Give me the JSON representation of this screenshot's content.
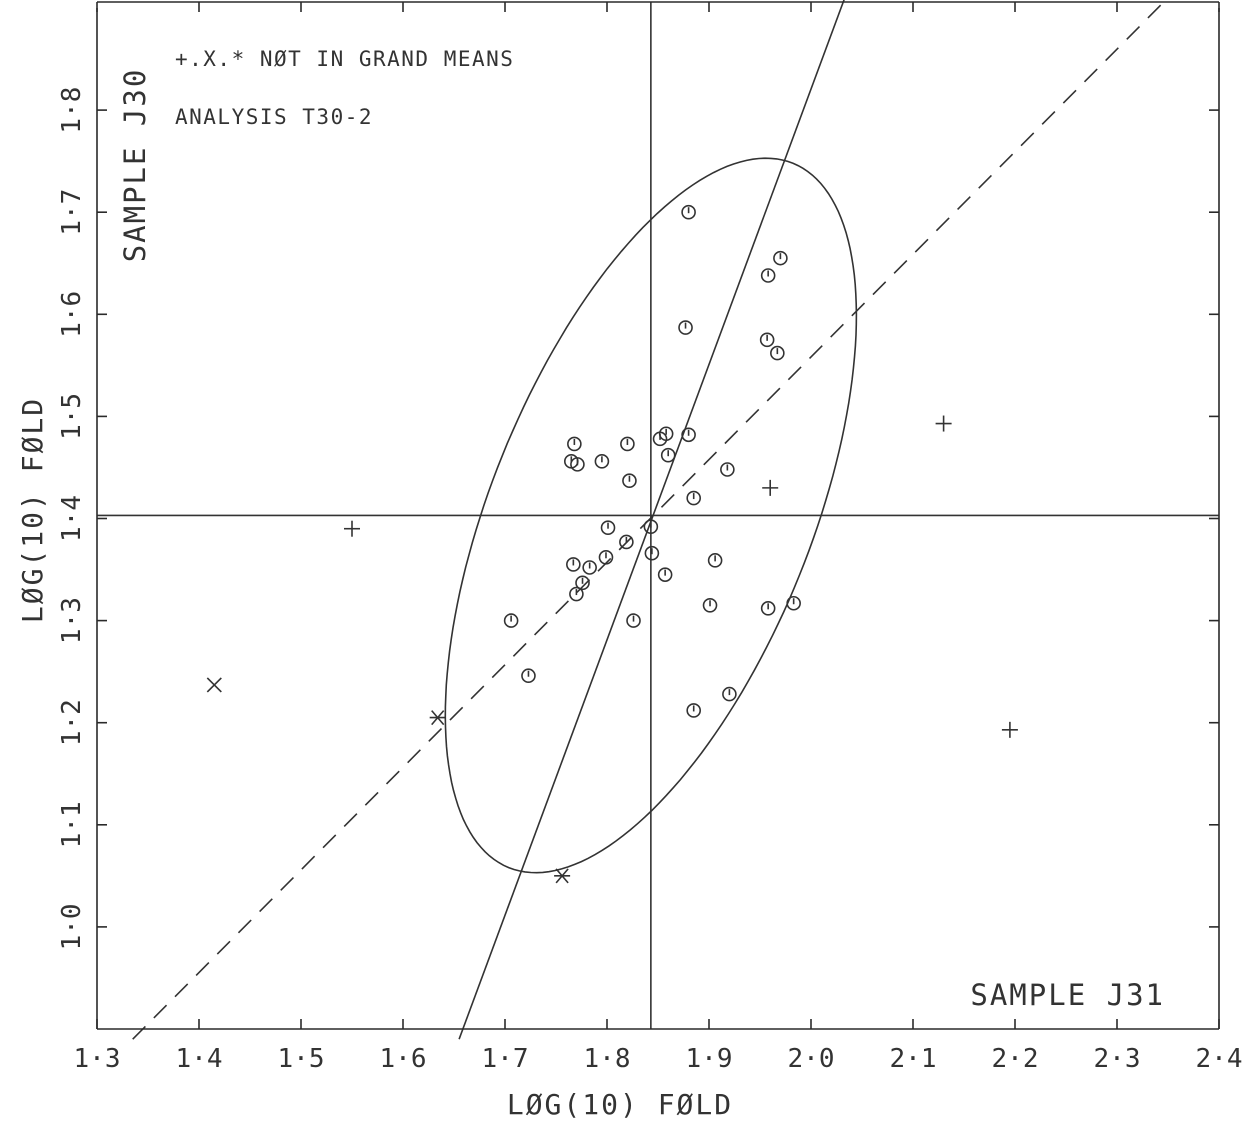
{
  "chart_data": {
    "type": "scatter",
    "title": "",
    "xlabel": "LØG(10) FØLD",
    "ylabel": "LØG(10) FØLD",
    "xlim": [
      1.3,
      2.4
    ],
    "ylim": [
      0.9,
      1.9
    ],
    "xticks": [
      "1.3",
      "1.4",
      "1.5",
      "1.6",
      "1.7",
      "1.8",
      "1.9",
      "2.0",
      "2.1",
      "2.2",
      "2.3",
      "2.4"
    ],
    "yticks": [
      "1.0",
      "1.1",
      "1.2",
      "1.3",
      "1.4",
      "1.5",
      "1.6",
      "1.7",
      "1.8"
    ],
    "annotations": {
      "legend_note": "+.X.* NØT IN GRAND MEANS",
      "analysis": "ANALYSIS  T30-2",
      "sample_y": "SAMPLE J30",
      "sample_x": "SAMPLE J31"
    },
    "grand_mean": {
      "x": 1.843,
      "y": 1.403
    },
    "series": [
      {
        "marker": "circle",
        "points": [
          [
            1.88,
            1.7
          ],
          [
            1.97,
            1.655
          ],
          [
            1.958,
            1.638
          ],
          [
            1.877,
            1.587
          ],
          [
            1.957,
            1.575
          ],
          [
            1.967,
            1.562
          ],
          [
            1.768,
            1.473
          ],
          [
            1.82,
            1.473
          ],
          [
            1.852,
            1.478
          ],
          [
            1.858,
            1.483
          ],
          [
            1.88,
            1.482
          ],
          [
            1.765,
            1.456
          ],
          [
            1.771,
            1.453
          ],
          [
            1.795,
            1.456
          ],
          [
            1.86,
            1.462
          ],
          [
            1.918,
            1.448
          ],
          [
            1.822,
            1.437
          ],
          [
            1.885,
            1.42
          ],
          [
            1.843,
            1.392
          ],
          [
            1.801,
            1.391
          ],
          [
            1.819,
            1.377
          ],
          [
            1.799,
            1.362
          ],
          [
            1.844,
            1.366
          ],
          [
            1.767,
            1.355
          ],
          [
            1.783,
            1.352
          ],
          [
            1.906,
            1.359
          ],
          [
            1.857,
            1.345
          ],
          [
            1.776,
            1.337
          ],
          [
            1.77,
            1.326
          ],
          [
            1.901,
            1.315
          ],
          [
            1.958,
            1.312
          ],
          [
            1.983,
            1.317
          ],
          [
            1.706,
            1.3
          ],
          [
            1.826,
            1.3
          ],
          [
            1.723,
            1.246
          ],
          [
            1.92,
            1.228
          ],
          [
            1.885,
            1.212
          ]
        ]
      },
      {
        "marker": "plus",
        "points": [
          [
            1.55,
            1.39
          ],
          [
            1.96,
            1.43
          ],
          [
            2.13,
            1.493
          ],
          [
            2.195,
            1.193
          ]
        ]
      },
      {
        "marker": "x",
        "points": [
          [
            1.415,
            1.237
          ]
        ]
      },
      {
        "marker": "star",
        "points": [
          [
            1.634,
            1.205
          ],
          [
            1.756,
            1.05
          ]
        ]
      }
    ],
    "ellipse": {
      "center_x": 1.843,
      "center_y": 1.403,
      "angle_deg": 68.0,
      "semi_major": 0.372,
      "semi_minor": 0.157
    },
    "lines": [
      {
        "style": "solid",
        "from": [
          1.655,
          0.89
        ],
        "to": [
          2.035,
          1.915
        ]
      },
      {
        "style": "dashed",
        "from": [
          1.335,
          0.89
        ],
        "to": [
          2.355,
          1.915
        ]
      }
    ]
  }
}
